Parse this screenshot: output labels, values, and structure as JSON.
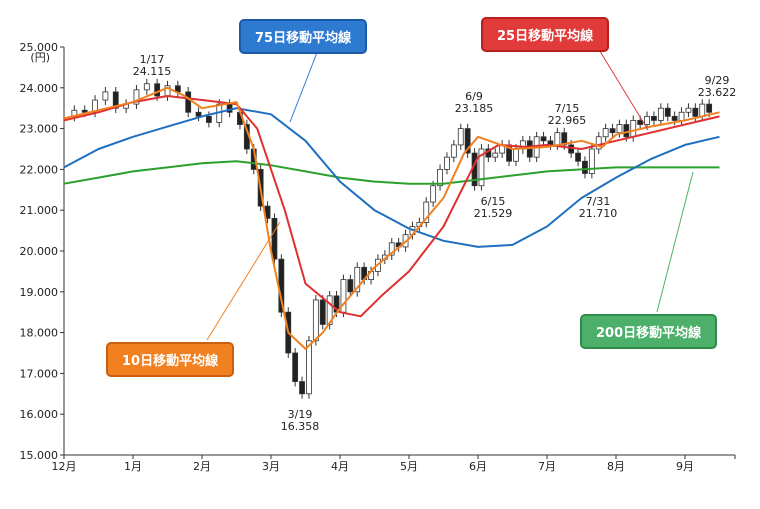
{
  "chart_data": {
    "type": "candlestick-line",
    "y_unit": "(円)",
    "ylim": [
      15000,
      25000
    ],
    "y_ticks": [
      "15.000",
      "16.000",
      "17.000",
      "18.000",
      "19.000",
      "20.000",
      "21.000",
      "22.000",
      "23.000",
      "24.000",
      "25.000"
    ],
    "x_ticks": [
      "12月",
      "1月",
      "2月",
      "3月",
      "4月",
      "5月",
      "6月",
      "7月",
      "8月",
      "9月"
    ],
    "grid": false,
    "annotations": [
      {
        "date": "1/17",
        "value": "24.115"
      },
      {
        "date": "3/19",
        "value": "16.358"
      },
      {
        "date": "6/9",
        "value": "23.185"
      },
      {
        "date": "6/15",
        "value": "21.529"
      },
      {
        "date": "7/15",
        "value": "22.965"
      },
      {
        "date": "7/31",
        "value": "21.710"
      },
      {
        "date": "9/29",
        "value": "23.622"
      }
    ],
    "series": [
      {
        "name": "75日移動平均線",
        "color": "#1f6fc0",
        "x": [
          0,
          0.5,
          1,
          1.5,
          2,
          2.5,
          3,
          3.5,
          4,
          4.5,
          5,
          5.5,
          6,
          6.5,
          7,
          7.5,
          8,
          8.5,
          9,
          9.5
        ],
        "values": [
          22050,
          22500,
          22800,
          23050,
          23300,
          23500,
          23350,
          22700,
          21700,
          21000,
          20550,
          20250,
          20100,
          20150,
          20600,
          21300,
          21800,
          22250,
          22600,
          22800
        ]
      },
      {
        "name": "25日移動平均線",
        "color": "#e03030",
        "x": [
          0,
          0.5,
          1,
          1.5,
          2,
          2.5,
          2.8,
          3.2,
          3.5,
          4,
          4.3,
          4.6,
          5,
          5.5,
          6,
          6.3,
          6.7,
          7,
          7.5,
          8,
          8.5,
          9,
          9.5
        ],
        "values": [
          23200,
          23400,
          23650,
          23800,
          23700,
          23600,
          23000,
          21000,
          19200,
          18500,
          18400,
          18900,
          19500,
          20600,
          22300,
          22600,
          22550,
          22600,
          22500,
          22700,
          22900,
          23100,
          23300
        ]
      },
      {
        "name": "10日移動平均線",
        "color": "#f08020",
        "x": [
          0,
          0.5,
          1,
          1.5,
          1.75,
          2,
          2.5,
          2.75,
          3,
          3.25,
          3.5,
          3.75,
          4,
          4.5,
          5,
          5.5,
          5.8,
          6,
          6.5,
          7,
          7.5,
          7.8,
          8,
          8.5,
          9,
          9.5
        ],
        "values": [
          23250,
          23450,
          23650,
          24000,
          23800,
          23500,
          23650,
          22500,
          20000,
          18000,
          17600,
          18000,
          18600,
          19600,
          20300,
          21300,
          22400,
          22800,
          22500,
          22550,
          22700,
          22550,
          22850,
          23050,
          23200,
          23400
        ]
      },
      {
        "name": "200日移動平均線",
        "color": "#2ca02c",
        "x": [
          0,
          0.5,
          1,
          1.5,
          2,
          2.5,
          3,
          3.5,
          4,
          4.5,
          5,
          5.5,
          6,
          6.5,
          7,
          7.5,
          8,
          8.5,
          9,
          9.5
        ],
        "values": [
          21650,
          21800,
          21950,
          22050,
          22150,
          22200,
          22100,
          21950,
          21800,
          21700,
          21650,
          21650,
          21750,
          21850,
          21950,
          22000,
          22050,
          22050,
          22050,
          22050
        ]
      }
    ],
    "candles_close": [
      [
        0,
        23300
      ],
      [
        0.15,
        23450
      ],
      [
        0.3,
        23400
      ],
      [
        0.45,
        23700
      ],
      [
        0.6,
        23900
      ],
      [
        0.75,
        23500
      ],
      [
        0.9,
        23600
      ],
      [
        1.05,
        23950
      ],
      [
        1.2,
        24100
      ],
      [
        1.35,
        23800
      ],
      [
        1.5,
        24050
      ],
      [
        1.65,
        23900
      ],
      [
        1.8,
        23400
      ],
      [
        1.95,
        23300
      ],
      [
        2.1,
        23150
      ],
      [
        2.25,
        23600
      ],
      [
        2.4,
        23400
      ],
      [
        2.55,
        23100
      ],
      [
        2.65,
        22500
      ],
      [
        2.75,
        22000
      ],
      [
        2.85,
        21100
      ],
      [
        2.95,
        20800
      ],
      [
        3.05,
        19800
      ],
      [
        3.15,
        18500
      ],
      [
        3.25,
        17500
      ],
      [
        3.35,
        16800
      ],
      [
        3.45,
        16500
      ],
      [
        3.55,
        17800
      ],
      [
        3.65,
        18800
      ],
      [
        3.75,
        18200
      ],
      [
        3.85,
        18900
      ],
      [
        3.95,
        18500
      ],
      [
        4.05,
        19300
      ],
      [
        4.15,
        19000
      ],
      [
        4.25,
        19600
      ],
      [
        4.35,
        19300
      ],
      [
        4.45,
        19500
      ],
      [
        4.55,
        19800
      ],
      [
        4.65,
        19900
      ],
      [
        4.75,
        20200
      ],
      [
        4.85,
        20100
      ],
      [
        4.95,
        20400
      ],
      [
        5.05,
        20600
      ],
      [
        5.15,
        20700
      ],
      [
        5.25,
        21200
      ],
      [
        5.35,
        21600
      ],
      [
        5.45,
        22000
      ],
      [
        5.55,
        22300
      ],
      [
        5.65,
        22600
      ],
      [
        5.75,
        23000
      ],
      [
        5.85,
        22400
      ],
      [
        5.95,
        21600
      ],
      [
        6.05,
        22500
      ],
      [
        6.15,
        22300
      ],
      [
        6.25,
        22400
      ],
      [
        6.35,
        22600
      ],
      [
        6.45,
        22200
      ],
      [
        6.55,
        22500
      ],
      [
        6.65,
        22700
      ],
      [
        6.75,
        22300
      ],
      [
        6.85,
        22800
      ],
      [
        6.95,
        22700
      ],
      [
        7.05,
        22600
      ],
      [
        7.15,
        22900
      ],
      [
        7.25,
        22600
      ],
      [
        7.35,
        22400
      ],
      [
        7.45,
        22200
      ],
      [
        7.55,
        21900
      ],
      [
        7.65,
        22500
      ],
      [
        7.75,
        22800
      ],
      [
        7.85,
        23000
      ],
      [
        7.95,
        22900
      ],
      [
        8.05,
        23100
      ],
      [
        8.15,
        22800
      ],
      [
        8.25,
        23200
      ],
      [
        8.35,
        23100
      ],
      [
        8.45,
        23300
      ],
      [
        8.55,
        23200
      ],
      [
        8.65,
        23500
      ],
      [
        8.75,
        23300
      ],
      [
        8.85,
        23200
      ],
      [
        8.95,
        23400
      ],
      [
        9.05,
        23500
      ],
      [
        9.15,
        23300
      ],
      [
        9.25,
        23600
      ],
      [
        9.35,
        23400
      ]
    ]
  }
}
